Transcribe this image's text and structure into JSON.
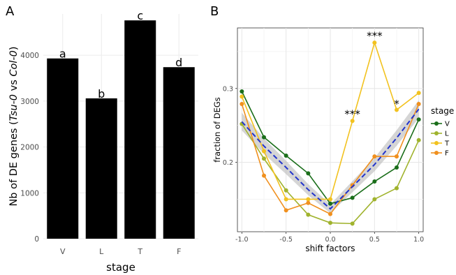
{
  "chart_data": [
    {
      "panel": "A",
      "type": "bar",
      "xlabel": "stage",
      "ylabel_prefix": "Nb of DE genes (",
      "ylabel_italic_1": "Tsu-0",
      "ylabel_mid": " vs ",
      "ylabel_italic_2": "Col-0",
      "ylabel_suffix": ")",
      "categories": [
        "V",
        "L",
        "T",
        "F"
      ],
      "values": [
        3930,
        3060,
        4760,
        3740
      ],
      "bar_labels": [
        "a",
        "b",
        "c",
        "d"
      ],
      "ylim": [
        0,
        4900
      ],
      "yticks": [
        0,
        1000,
        2000,
        3000,
        4000
      ],
      "bar_color": "#000000",
      "grid": true
    },
    {
      "panel": "B",
      "type": "line",
      "xlabel": "shift factors",
      "ylabel": "fraction of DEGs",
      "x": [
        -1.0,
        -0.75,
        -0.5,
        -0.25,
        0.0,
        0.25,
        0.5,
        0.75,
        1.0
      ],
      "xticks": [
        -1.0,
        -0.5,
        0.0,
        0.5,
        1.0
      ],
      "xtick_labels": [
        "-1.0",
        "-0.5",
        "0.0",
        "0.5",
        "1.0"
      ],
      "yticks": [
        0.2,
        0.3
      ],
      "ytick_labels": [
        "0.2",
        "0.3"
      ],
      "xlim": [
        -1.05,
        1.05
      ],
      "ylim": [
        0.106,
        0.382
      ],
      "legend_title": "stage",
      "legend_position": "right",
      "series": [
        {
          "name": "V",
          "color": "#1a6e1a",
          "values": [
            0.296,
            0.234,
            0.209,
            0.185,
            0.144,
            0.152,
            0.174,
            0.193,
            0.258
          ]
        },
        {
          "name": "L",
          "color": "#a0b32d",
          "values": [
            0.252,
            0.205,
            0.162,
            0.129,
            0.118,
            0.117,
            0.15,
            0.165,
            0.23
          ]
        },
        {
          "name": "T",
          "color": "#f2c21f",
          "values": [
            0.289,
            0.215,
            0.15,
            0.15,
            0.15,
            0.256,
            0.362,
            0.271,
            0.294
          ]
        },
        {
          "name": "F",
          "color": "#f0901e",
          "values": [
            0.279,
            0.182,
            0.135,
            0.145,
            0.13,
            0.169,
            0.208,
            0.208,
            0.279
          ]
        }
      ],
      "trend": {
        "color": "#2233cc",
        "values": [
          0.255,
          0.222,
          0.193,
          0.163,
          0.137,
          0.167,
          0.197,
          0.233,
          0.272
        ]
      },
      "annotations": [
        {
          "x": 0.25,
          "y": 0.266,
          "text": "***"
        },
        {
          "x": 0.5,
          "y": 0.372,
          "text": "***"
        },
        {
          "x": 0.75,
          "y": 0.28,
          "text": "*"
        }
      ],
      "grid": true
    }
  ]
}
